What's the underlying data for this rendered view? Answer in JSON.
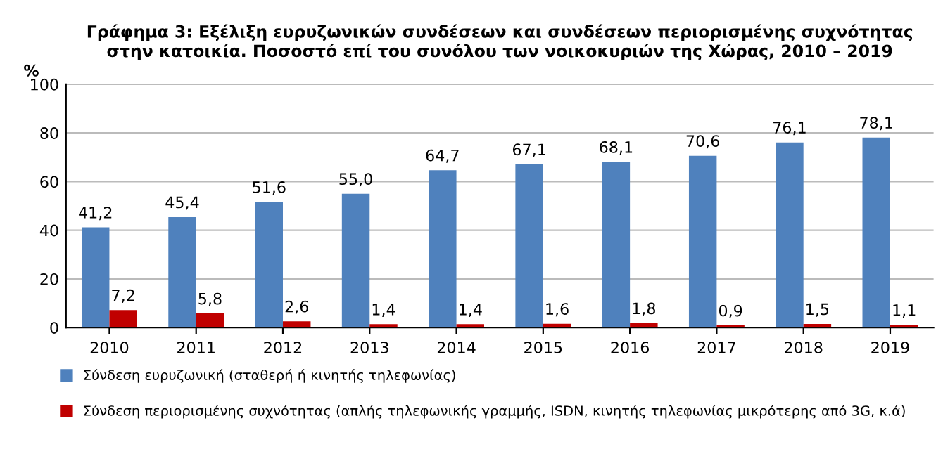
{
  "chart_data": {
    "type": "bar",
    "title": "Γράφημα 3: Εξέλιξη ευρυζωνικών συνδέσεων και συνδέσεων περιορισμένης συχνότητας\nστην κατοικία. Ποσοστό επί του συνόλου των νοικοκυριών της Χώρας, 2010 – 2019",
    "ylabel": "%",
    "categories": [
      "2010",
      "2011",
      "2012",
      "2013",
      "2014",
      "2015",
      "2016",
      "2017",
      "2018",
      "2019"
    ],
    "series": [
      {
        "name": "Σύνδεση ευρυζωνική (σταθερή ή κινητής τηλεφωνίας)",
        "color": "#4f81bd",
        "values": [
          41.2,
          45.4,
          51.6,
          55.0,
          64.7,
          67.1,
          68.1,
          70.6,
          76.1,
          78.1
        ],
        "value_labels": [
          "41,2",
          "45,4",
          "51,6",
          "55,0",
          "64,7",
          "67,1",
          "68,1",
          "70,6",
          "76,1",
          "78,1"
        ]
      },
      {
        "name": "Σύνδεση περιορισμένης συχνότητας (απλής τηλεφωνικής γραμμής, ISDN, κινητής τηλεφωνίας μικρότερης από 3G, κ.ά)",
        "color": "#c00000",
        "values": [
          7.2,
          5.8,
          2.6,
          1.4,
          1.4,
          1.6,
          1.8,
          0.9,
          1.5,
          1.1
        ],
        "value_labels": [
          "7,2",
          "5,8",
          "2,6",
          "1,4",
          "1,4",
          "1,6",
          "1,8",
          "0,9",
          "1,5",
          "1,1"
        ]
      }
    ],
    "ylim": [
      0,
      100
    ],
    "yticks": [
      0,
      20,
      40,
      60,
      80,
      100
    ],
    "grid": "y",
    "legend": "bottom"
  }
}
